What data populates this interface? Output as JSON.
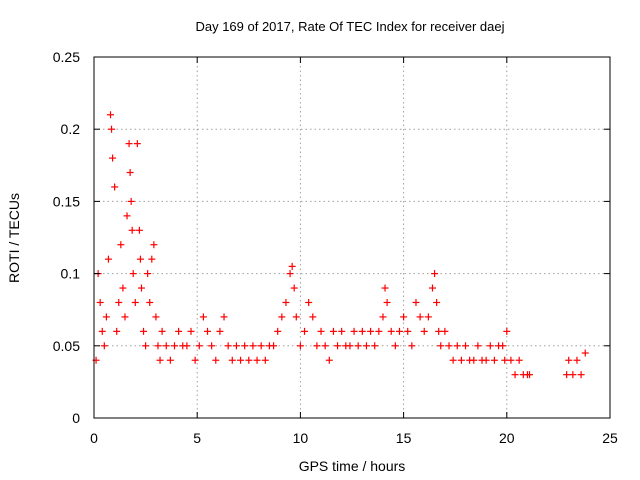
{
  "chart_data": {
    "type": "scatter",
    "title": "Day 169 of 2017, Rate Of TEC Index for receiver daej",
    "xlabel": "GPS time / hours",
    "ylabel": "ROTI / TECUs",
    "xlim": [
      0,
      25
    ],
    "ylim": [
      0,
      0.25
    ],
    "xticks": [
      0,
      5,
      10,
      15,
      20,
      25
    ],
    "xtick_labels": [
      "0",
      "5",
      "10",
      "15",
      "20",
      "25"
    ],
    "yticks": [
      0,
      0.05,
      0.1,
      0.15,
      0.2,
      0.25
    ],
    "ytick_labels": [
      "0",
      "0.05",
      "0.1",
      "0.15",
      "0.2",
      "0.25"
    ],
    "grid": true,
    "marker": "+",
    "color": "#ff0000",
    "series": [
      {
        "x": [
          0.1,
          0.2,
          0.3,
          0.4,
          0.5,
          0.6,
          0.7,
          0.8,
          0.85,
          0.9,
          1.0,
          1.1,
          1.2,
          1.3,
          1.4,
          1.5,
          1.6,
          1.7,
          1.75,
          1.8,
          1.85,
          1.9,
          2.0,
          2.1,
          2.2,
          2.25,
          2.3,
          2.4,
          2.5,
          2.6,
          2.7,
          2.8,
          2.9,
          3.0,
          3.1,
          3.2,
          3.3,
          3.5,
          3.7,
          3.9,
          4.1,
          4.3,
          4.5,
          4.7,
          4.9,
          5.1,
          5.3,
          5.5,
          5.7,
          5.9,
          6.1,
          6.3,
          6.5,
          6.7,
          6.9,
          7.1,
          7.3,
          7.5,
          7.7,
          7.9,
          8.1,
          8.3,
          8.5,
          8.7,
          8.9,
          9.1,
          9.3,
          9.5,
          9.6,
          9.7,
          9.8,
          10.0,
          10.2,
          10.4,
          10.6,
          10.8,
          11.0,
          11.2,
          11.4,
          11.6,
          11.8,
          12.0,
          12.2,
          12.4,
          12.6,
          12.8,
          13.0,
          13.2,
          13.4,
          13.6,
          13.8,
          14.0,
          14.1,
          14.2,
          14.4,
          14.6,
          14.8,
          15.0,
          15.2,
          15.4,
          15.6,
          15.8,
          16.0,
          16.2,
          16.4,
          16.5,
          16.6,
          16.7,
          16.8,
          17.0,
          17.2,
          17.4,
          17.6,
          17.8,
          18.0,
          18.2,
          18.4,
          18.6,
          18.8,
          19.0,
          19.2,
          19.4,
          19.6,
          19.8,
          19.9,
          20.0,
          20.2,
          20.4,
          20.6,
          20.8,
          21.0,
          21.1,
          22.9,
          23.0,
          23.2,
          23.4,
          23.6,
          23.8
        ],
        "y": [
          0.04,
          0.1,
          0.08,
          0.06,
          0.05,
          0.07,
          0.11,
          0.21,
          0.2,
          0.18,
          0.16,
          0.06,
          0.08,
          0.12,
          0.09,
          0.07,
          0.14,
          0.19,
          0.17,
          0.15,
          0.13,
          0.1,
          0.08,
          0.19,
          0.13,
          0.11,
          0.09,
          0.06,
          0.05,
          0.1,
          0.08,
          0.11,
          0.12,
          0.07,
          0.05,
          0.04,
          0.06,
          0.05,
          0.04,
          0.05,
          0.06,
          0.05,
          0.05,
          0.06,
          0.04,
          0.05,
          0.07,
          0.06,
          0.05,
          0.04,
          0.06,
          0.07,
          0.05,
          0.04,
          0.05,
          0.04,
          0.05,
          0.04,
          0.05,
          0.04,
          0.05,
          0.04,
          0.05,
          0.05,
          0.06,
          0.07,
          0.08,
          0.1,
          0.105,
          0.09,
          0.07,
          0.05,
          0.06,
          0.08,
          0.07,
          0.05,
          0.06,
          0.05,
          0.04,
          0.06,
          0.05,
          0.06,
          0.05,
          0.05,
          0.06,
          0.05,
          0.06,
          0.05,
          0.06,
          0.05,
          0.06,
          0.07,
          0.09,
          0.08,
          0.06,
          0.05,
          0.06,
          0.07,
          0.06,
          0.05,
          0.08,
          0.07,
          0.06,
          0.07,
          0.09,
          0.1,
          0.08,
          0.06,
          0.05,
          0.06,
          0.05,
          0.04,
          0.05,
          0.04,
          0.05,
          0.04,
          0.04,
          0.05,
          0.04,
          0.04,
          0.05,
          0.04,
          0.05,
          0.05,
          0.04,
          0.06,
          0.04,
          0.03,
          0.04,
          0.03,
          0.03,
          0.03,
          0.03,
          0.04,
          0.03,
          0.04,
          0.03,
          0.045
        ]
      }
    ]
  }
}
